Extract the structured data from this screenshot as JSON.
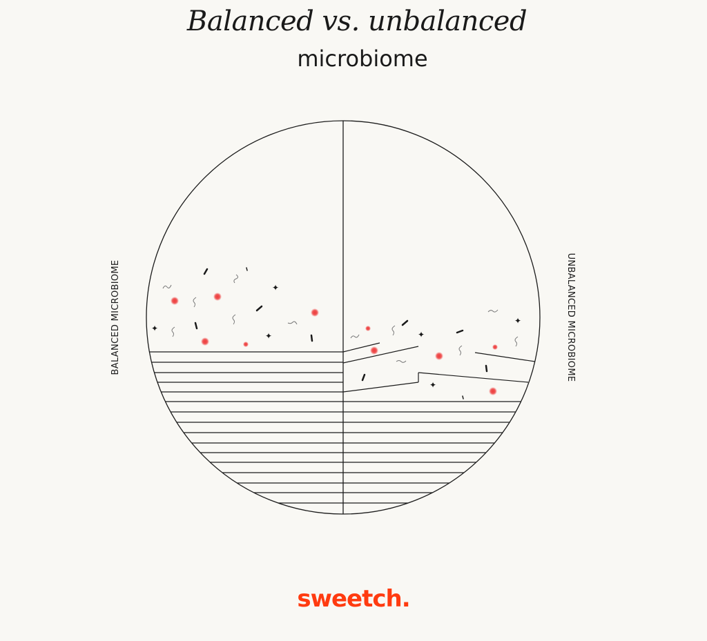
{
  "title": {
    "line1": "Balanced vs. unbalanced",
    "line2": "microbiome"
  },
  "labels": {
    "left": "BALANCED MICROBIOME",
    "right": "UNBALANCED MICROBIOME"
  },
  "brand": {
    "name": "sweetch."
  },
  "colors": {
    "background": "#f9f8f4",
    "ink": "#1a1a1a",
    "microbe_red": "#ee3b3b",
    "brand": "#ff3b10"
  }
}
